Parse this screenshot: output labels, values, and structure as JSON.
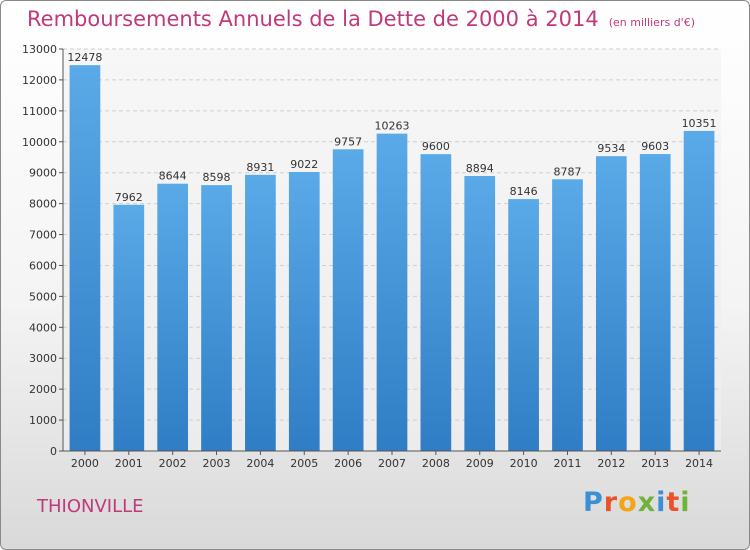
{
  "title": "Remboursements Annuels de la Dette de 2000 à 2014",
  "unit": "(en milliers d'€)",
  "city": "THIONVILLE",
  "logo": {
    "text": "Proxiti",
    "letters": [
      {
        "ch": "P",
        "color": "#3b8fd4"
      },
      {
        "ch": "r",
        "color": "#e8532c"
      },
      {
        "ch": "o",
        "color": "#f2a516"
      },
      {
        "ch": "x",
        "color": "#6fb33a"
      },
      {
        "ch": "i",
        "color": "#3b8fd4"
      },
      {
        "ch": "t",
        "color": "#e8532c"
      },
      {
        "ch": "i",
        "color": "#6fb33a"
      }
    ]
  },
  "colors": {
    "title": "#c0397a",
    "bar_light": "#5aaae8",
    "bar_dark": "#2f7dc4"
  },
  "chart_data": {
    "type": "bar",
    "categories": [
      "2000",
      "2001",
      "2002",
      "2003",
      "2004",
      "2005",
      "2006",
      "2007",
      "2008",
      "2009",
      "2010",
      "2011",
      "2012",
      "2013",
      "2014"
    ],
    "values": [
      12478,
      7962,
      8644,
      8598,
      8931,
      9022,
      9757,
      10263,
      9600,
      8894,
      8146,
      8787,
      9534,
      9603,
      10351
    ],
    "ylim": [
      0,
      13000
    ],
    "yticks": [
      0,
      1000,
      2000,
      3000,
      4000,
      5000,
      6000,
      7000,
      8000,
      9000,
      10000,
      11000,
      12000,
      13000
    ],
    "grid": true,
    "xlabel": "",
    "ylabel": ""
  }
}
